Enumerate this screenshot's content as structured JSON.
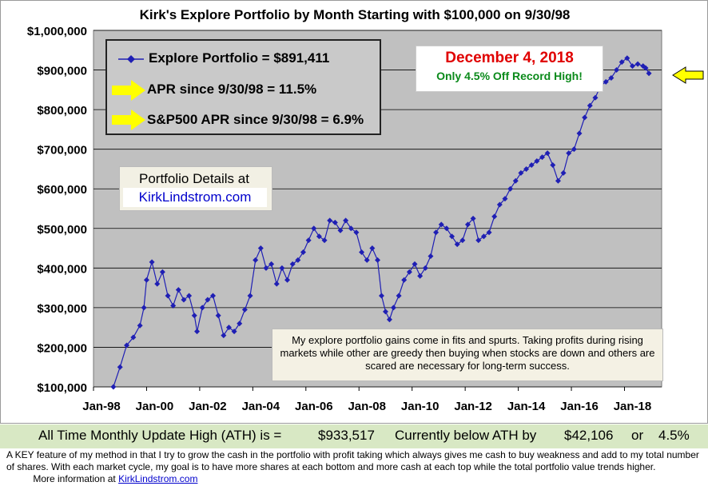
{
  "chart_data": {
    "type": "line",
    "title": "Kirk's Explore Portfolio by Month Starting with $100,000 on 9/30/98",
    "xlabel": "",
    "ylabel": "",
    "ylim": [
      100000,
      1000000
    ],
    "y_ticks": [
      "$100,000",
      "$200,000",
      "$300,000",
      "$400,000",
      "$500,000",
      "$600,000",
      "$700,000",
      "$800,000",
      "$900,000",
      "$1,000,000"
    ],
    "x_ticks": [
      "Jan-98",
      "Jan-00",
      "Jan-02",
      "Jan-04",
      "Jan-06",
      "Jan-08",
      "Jan-10",
      "Jan-12",
      "Jan-14",
      "Jan-16",
      "Jan-18"
    ],
    "grid": "horizontal",
    "series": [
      {
        "name": "Explore Portfolio",
        "color": "#1f1fb4",
        "points": [
          [
            1998.75,
            100000
          ],
          [
            1999.0,
            150000
          ],
          [
            1999.25,
            205000
          ],
          [
            1999.5,
            225000
          ],
          [
            1999.75,
            255000
          ],
          [
            1999.9,
            300000
          ],
          [
            2000.0,
            370000
          ],
          [
            2000.2,
            415000
          ],
          [
            2000.4,
            360000
          ],
          [
            2000.6,
            390000
          ],
          [
            2000.8,
            330000
          ],
          [
            2001.0,
            305000
          ],
          [
            2001.2,
            345000
          ],
          [
            2001.4,
            320000
          ],
          [
            2001.6,
            330000
          ],
          [
            2001.8,
            280000
          ],
          [
            2001.9,
            240000
          ],
          [
            2002.1,
            300000
          ],
          [
            2002.3,
            320000
          ],
          [
            2002.5,
            330000
          ],
          [
            2002.7,
            280000
          ],
          [
            2002.9,
            230000
          ],
          [
            2003.1,
            250000
          ],
          [
            2003.3,
            240000
          ],
          [
            2003.5,
            260000
          ],
          [
            2003.7,
            295000
          ],
          [
            2003.9,
            330000
          ],
          [
            2004.1,
            420000
          ],
          [
            2004.3,
            450000
          ],
          [
            2004.5,
            400000
          ],
          [
            2004.7,
            410000
          ],
          [
            2004.9,
            360000
          ],
          [
            2005.1,
            400000
          ],
          [
            2005.3,
            370000
          ],
          [
            2005.5,
            410000
          ],
          [
            2005.7,
            420000
          ],
          [
            2005.9,
            440000
          ],
          [
            2006.1,
            470000
          ],
          [
            2006.3,
            500000
          ],
          [
            2006.5,
            480000
          ],
          [
            2006.7,
            470000
          ],
          [
            2006.9,
            520000
          ],
          [
            2007.1,
            515000
          ],
          [
            2007.3,
            495000
          ],
          [
            2007.5,
            520000
          ],
          [
            2007.7,
            500000
          ],
          [
            2007.9,
            490000
          ],
          [
            2008.1,
            440000
          ],
          [
            2008.3,
            420000
          ],
          [
            2008.5,
            450000
          ],
          [
            2008.7,
            420000
          ],
          [
            2008.85,
            330000
          ],
          [
            2009.0,
            290000
          ],
          [
            2009.15,
            270000
          ],
          [
            2009.3,
            300000
          ],
          [
            2009.5,
            330000
          ],
          [
            2009.7,
            370000
          ],
          [
            2009.9,
            390000
          ],
          [
            2010.1,
            410000
          ],
          [
            2010.3,
            380000
          ],
          [
            2010.5,
            400000
          ],
          [
            2010.7,
            430000
          ],
          [
            2010.9,
            490000
          ],
          [
            2011.1,
            510000
          ],
          [
            2011.3,
            500000
          ],
          [
            2011.5,
            480000
          ],
          [
            2011.7,
            460000
          ],
          [
            2011.9,
            470000
          ],
          [
            2012.1,
            510000
          ],
          [
            2012.3,
            525000
          ],
          [
            2012.5,
            470000
          ],
          [
            2012.7,
            480000
          ],
          [
            2012.9,
            490000
          ],
          [
            2013.1,
            530000
          ],
          [
            2013.3,
            560000
          ],
          [
            2013.5,
            575000
          ],
          [
            2013.7,
            600000
          ],
          [
            2013.9,
            620000
          ],
          [
            2014.1,
            640000
          ],
          [
            2014.3,
            650000
          ],
          [
            2014.5,
            660000
          ],
          [
            2014.7,
            670000
          ],
          [
            2014.9,
            680000
          ],
          [
            2015.1,
            690000
          ],
          [
            2015.3,
            660000
          ],
          [
            2015.5,
            620000
          ],
          [
            2015.7,
            640000
          ],
          [
            2015.9,
            690000
          ],
          [
            2016.1,
            700000
          ],
          [
            2016.3,
            740000
          ],
          [
            2016.5,
            780000
          ],
          [
            2016.7,
            810000
          ],
          [
            2016.9,
            830000
          ],
          [
            2017.1,
            860000
          ],
          [
            2017.3,
            870000
          ],
          [
            2017.5,
            880000
          ],
          [
            2017.7,
            900000
          ],
          [
            2017.9,
            920000
          ],
          [
            2018.1,
            930000
          ],
          [
            2018.3,
            910000
          ],
          [
            2018.5,
            915000
          ],
          [
            2018.7,
            910000
          ],
          [
            2018.8,
            905000
          ],
          [
            2018.92,
            891411
          ]
        ]
      }
    ]
  },
  "legend": {
    "series_label": "Explore Portfolio  =  $891,411",
    "apr_label": "APR since 9/30/98 =  11.5%",
    "sp_label": "S&P500 APR since 9/30/98 =  6.9%"
  },
  "callout": {
    "date": "December 4, 2018",
    "sub": "Only 4.5% Off Record High!"
  },
  "details": {
    "label": "Portfolio Details at",
    "link": "KirkLindstrom.com"
  },
  "note": "My explore portfolio gains come in fits and spurts. Taking profits during rising markets while other are greedy then buying when stocks are down and others are scared are necessary for long-term success.",
  "ath": {
    "prefix": "All Time Monthly Update High (ATH) is =",
    "value": "$933,517",
    "below_label": "Currently below ATH by",
    "below_amount": "$42,106",
    "or": "or",
    "below_pct": "4.5%"
  },
  "footer": {
    "text": "A KEY feature of my method in that I try to grow the cash in the portfolio with profit taking which always gives me cash to buy weakness and add to my total number of shares.  With each market cycle, my goal is to have more shares at each bottom and more cash at each top while the total portfolio value trends higher.",
    "more": "More information at",
    "link": "KirkLindstrom.com"
  },
  "colors": {
    "plot_bg": "#c0c0c0",
    "series": "#1f1fb4",
    "arrow": "#ffff00",
    "date_red": "#e00000",
    "date_green": "#0a8a1a"
  }
}
